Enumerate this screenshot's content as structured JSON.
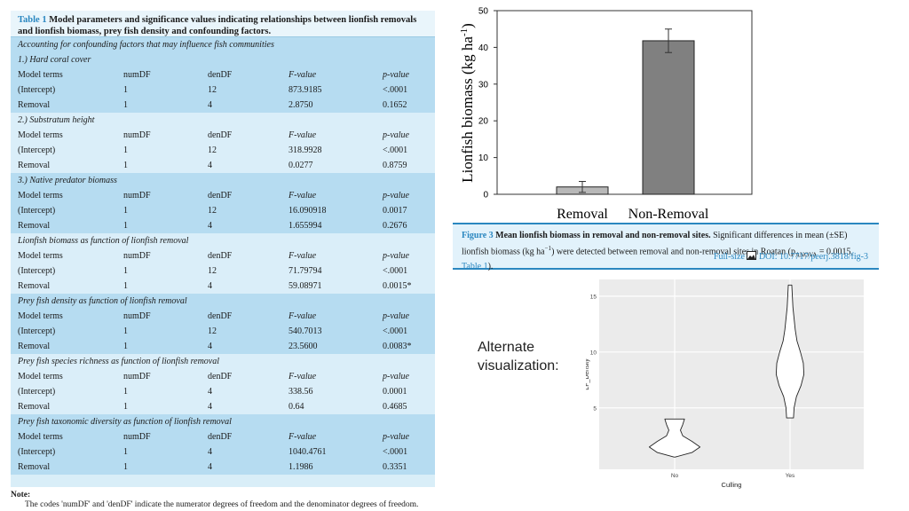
{
  "table": {
    "caption_label": "Table 1",
    "caption_title": "Model parameters and significance values indicating relationships between lionfish removals and lionfish biomass, prey fish density and confounding factors.",
    "sections": [
      {
        "header": "Accounting for confounding factors that may influence fish communities",
        "title": "1.) Hard coral cover",
        "columns": [
          "Model terms",
          "numDF",
          "denDF",
          "F-value",
          "p-value"
        ],
        "rows": [
          [
            "(Intercept)",
            "1",
            "12",
            "873.9185",
            "<.0001"
          ],
          [
            "Removal",
            "1",
            "4",
            "2.8750",
            "0.1652"
          ]
        ]
      },
      {
        "header": "",
        "title": "2.) Substratum height",
        "columns": [
          "Model terms",
          "numDF",
          "denDF",
          "F-value",
          "p-value"
        ],
        "rows": [
          [
            "(Intercept)",
            "1",
            "12",
            "318.9928",
            "<.0001"
          ],
          [
            "Removal",
            "1",
            "4",
            "0.0277",
            "0.8759"
          ]
        ]
      },
      {
        "header": "",
        "title": "3.) Native predator biomass",
        "columns": [
          "Model terms",
          "numDF",
          "denDF",
          "F-value",
          "p-value"
        ],
        "rows": [
          [
            "(Intercept)",
            "1",
            "12",
            "16.090918",
            "0.0017"
          ],
          [
            "Removal",
            "1",
            "4",
            "1.655994",
            "0.2676"
          ]
        ]
      },
      {
        "header": "",
        "title": "Lionfish biomass as function of lionfish removal",
        "columns": [
          "Model terms",
          "numDF",
          "denDF",
          "F-value",
          "p-value"
        ],
        "rows": [
          [
            "(Intercept)",
            "1",
            "12",
            "71.79794",
            "<.0001"
          ],
          [
            "Removal",
            "1",
            "4",
            "59.08971",
            "0.0015*"
          ]
        ]
      },
      {
        "header": "",
        "title": "Prey fish density as function of lionfish removal",
        "columns": [
          "Model terms",
          "numDF",
          "denDF",
          "F-value",
          "p-value"
        ],
        "rows": [
          [
            "(Intercept)",
            "1",
            "12",
            "540.7013",
            "<.0001"
          ],
          [
            "Removal",
            "1",
            "4",
            "23.5600",
            "0.0083*"
          ]
        ]
      },
      {
        "header": "",
        "title": "Prey fish species richness as function of lionfish removal",
        "columns": [
          "Model terms",
          "numDF",
          "denDF",
          "F-value",
          "p-value"
        ],
        "rows": [
          [
            "(Intercept)",
            "1",
            "4",
            "338.56",
            "0.0001"
          ],
          [
            "Removal",
            "1",
            "4",
            "0.64",
            "0.4685"
          ]
        ]
      },
      {
        "header": "",
        "title": "Prey fish taxonomic diversity as function of lionfish removal",
        "columns": [
          "Model terms",
          "numDF",
          "denDF",
          "F-value",
          "p-value"
        ],
        "rows": [
          [
            "(Intercept)",
            "1",
            "4",
            "1040.4761",
            "<.0001"
          ],
          [
            "Removal",
            "1",
            "4",
            "1.1986",
            "0.3351"
          ]
        ]
      }
    ],
    "note_title": "Note:",
    "note_text": "The codes 'numDF' and 'denDF' indicate the numerator degrees of freedom and the denominator degrees of freedom."
  },
  "figure_caption": {
    "label": "Figure 3",
    "title": "Mean lionfish biomass in removal and non-removal sites.",
    "body_a": "Significant differences in mean (±SE) lionfish biomass (kg ha",
    "sup": "−1",
    "body_b": ") were detected between removal and non-removal sites in Roatan (p",
    "sub": "ANOVA",
    "body_c": " = 0.0015, ",
    "ref": "Table 1",
    "body_d": ").",
    "fullsize": "Full-size",
    "image_icon": "image-icon",
    "doi": "DOI: 10.7717/peerj.3818/fig-3"
  },
  "alt_label": [
    "Alternate",
    "visualization:"
  ],
  "chart_data": [
    {
      "type": "bar",
      "categories": [
        "Removal",
        "Non-Removal"
      ],
      "values": [
        2,
        41.8
      ],
      "errors": [
        1.5,
        3.2
      ],
      "colors": [
        "#b8b8b8",
        "#808080"
      ],
      "title": "",
      "xlabel": "",
      "ylabel": "Lionfish biomass (kg ha",
      "ylabel_sup": "-1",
      "ylabel_end": ")",
      "ylim": [
        0,
        50
      ],
      "yticks": [
        0,
        10,
        20,
        30,
        40,
        50
      ],
      "grid": false
    },
    {
      "type": "violin",
      "categories": [
        "No",
        "Yes"
      ],
      "xlabel": "Culling",
      "ylabel": "LF_Density",
      "ylim": [
        -0.5,
        16.5
      ],
      "yticks": [
        5,
        10,
        15
      ],
      "grid": true,
      "background": "#ebebeb",
      "series": [
        {
          "name": "No",
          "profile": [
            [
              0.6,
              0.01
            ],
            [
              1.0,
              0.3
            ],
            [
              1.5,
              0.44
            ],
            [
              2.0,
              0.3
            ],
            [
              2.5,
              0.14
            ],
            [
              3.0,
              0.1
            ],
            [
              3.5,
              0.14
            ],
            [
              4.0,
              0.17
            ]
          ]
        },
        {
          "name": "Yes",
          "profile": [
            [
              4.1,
              0.06
            ],
            [
              5.0,
              0.07
            ],
            [
              6.0,
              0.11
            ],
            [
              7.0,
              0.19
            ],
            [
              8.0,
              0.24
            ],
            [
              9.0,
              0.23
            ],
            [
              10.0,
              0.18
            ],
            [
              11.0,
              0.12
            ],
            [
              12.0,
              0.09
            ],
            [
              13.0,
              0.07
            ],
            [
              14.0,
              0.05
            ],
            [
              15.0,
              0.04
            ],
            [
              16.0,
              0.03
            ]
          ]
        }
      ]
    }
  ]
}
